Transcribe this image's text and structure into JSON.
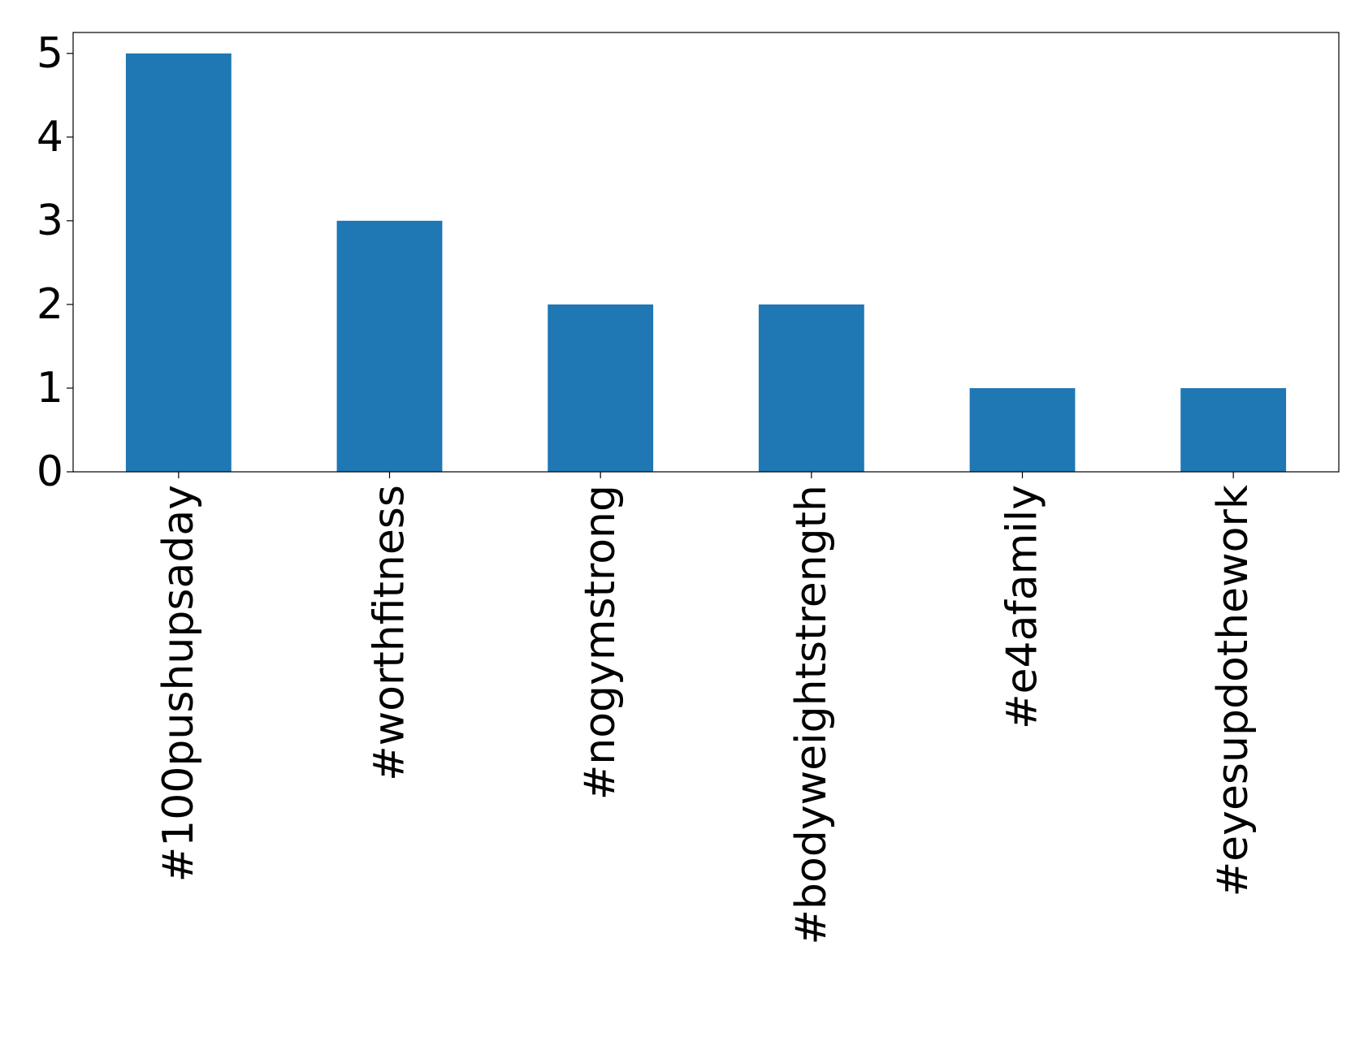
{
  "chart_data": {
    "type": "bar",
    "categories": [
      "#100pushupsaday",
      "#worthfitness",
      "#nogymstrong",
      "#bodyweightstrength",
      "#e4afamily",
      "#eyesupdothework"
    ],
    "values": [
      5,
      3,
      2,
      2,
      1,
      1
    ],
    "color": "#1f77b4",
    "ylim": [
      0,
      5.25
    ],
    "yticks": [
      0,
      1,
      2,
      3,
      4,
      5
    ],
    "grid": false
  }
}
